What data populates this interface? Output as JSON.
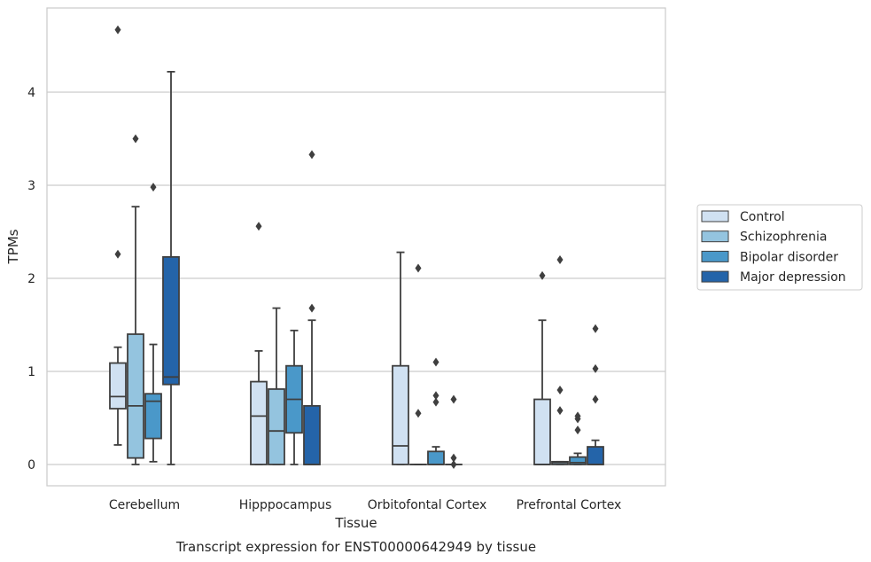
{
  "chart_data": {
    "type": "box",
    "xlabel": "Tissue",
    "ylabel": "TPMs",
    "caption": "Transcript expression for ENST00000642949 by tissue",
    "ylim": [
      -0.22,
      4.9
    ],
    "yticks": [
      0,
      1,
      2,
      3,
      4
    ],
    "grid": "horizontal",
    "legend_position": "right",
    "categories": [
      "Cerebellum",
      "Hipppocampus",
      "Orbitofontal Cortex",
      "Prefrontal Cortex"
    ],
    "series": [
      {
        "name": "Control",
        "color": "#d0e1f2",
        "boxes": [
          {
            "whislo": 0.21,
            "q1": 0.6,
            "median": 0.73,
            "q3": 1.09,
            "whishi": 1.26,
            "fliers": [
              2.26,
              4.67
            ]
          },
          {
            "whislo": 0.0,
            "q1": 0.0,
            "median": 0.52,
            "q3": 0.89,
            "whishi": 1.22,
            "fliers": [
              2.56
            ]
          },
          {
            "whislo": 0.0,
            "q1": 0.0,
            "median": 0.2,
            "q3": 1.06,
            "whishi": 2.28,
            "fliers": []
          },
          {
            "whislo": 0.0,
            "q1": 0.0,
            "median": 0.0,
            "q3": 0.7,
            "whishi": 1.55,
            "fliers": [
              2.03
            ]
          }
        ]
      },
      {
        "name": "Schizophrenia",
        "color": "#94c4df",
        "boxes": [
          {
            "whislo": 0.0,
            "q1": 0.07,
            "median": 0.63,
            "q3": 1.4,
            "whishi": 2.77,
            "fliers": [
              3.5
            ]
          },
          {
            "whislo": 0.0,
            "q1": 0.0,
            "median": 0.36,
            "q3": 0.81,
            "whishi": 1.68,
            "fliers": []
          },
          {
            "whislo": 0.0,
            "q1": 0.0,
            "median": 0.0,
            "q3": 0.0,
            "whishi": 0.0,
            "fliers": [
              0.55,
              2.11
            ]
          },
          {
            "whislo": 0.0,
            "q1": 0.0,
            "median": 0.02,
            "q3": 0.03,
            "whishi": 0.03,
            "fliers": [
              0.58,
              0.8,
              2.2
            ]
          }
        ]
      },
      {
        "name": "Bipolar disorder",
        "color": "#4a98c9",
        "boxes": [
          {
            "whislo": 0.03,
            "q1": 0.28,
            "median": 0.68,
            "q3": 0.76,
            "whishi": 1.29,
            "fliers": [
              2.98
            ]
          },
          {
            "whislo": 0.0,
            "q1": 0.34,
            "median": 0.7,
            "q3": 1.06,
            "whishi": 1.44,
            "fliers": []
          },
          {
            "whislo": 0.0,
            "q1": 0.0,
            "median": 0.0,
            "q3": 0.14,
            "whishi": 0.19,
            "fliers": [
              0.67,
              0.74,
              1.1
            ]
          },
          {
            "whislo": 0.0,
            "q1": 0.0,
            "median": 0.02,
            "q3": 0.08,
            "whishi": 0.12,
            "fliers": [
              0.37,
              0.49,
              0.52
            ]
          }
        ]
      },
      {
        "name": "Major depression",
        "color": "#2464a9",
        "boxes": [
          {
            "whislo": 0.0,
            "q1": 0.86,
            "median": 0.94,
            "q3": 2.23,
            "whishi": 4.22,
            "fliers": []
          },
          {
            "whislo": 0.0,
            "q1": 0.0,
            "median": 0.0,
            "q3": 0.63,
            "whishi": 1.55,
            "fliers": [
              1.68,
              3.33
            ]
          },
          {
            "whislo": 0.0,
            "q1": 0.0,
            "median": 0.0,
            "q3": 0.0,
            "whishi": 0.0,
            "fliers": [
              0.0,
              0.07,
              0.7
            ]
          },
          {
            "whislo": 0.0,
            "q1": 0.0,
            "median": 0.0,
            "q3": 0.19,
            "whishi": 0.26,
            "fliers": [
              0.7,
              1.03,
              1.46
            ]
          }
        ]
      }
    ]
  }
}
